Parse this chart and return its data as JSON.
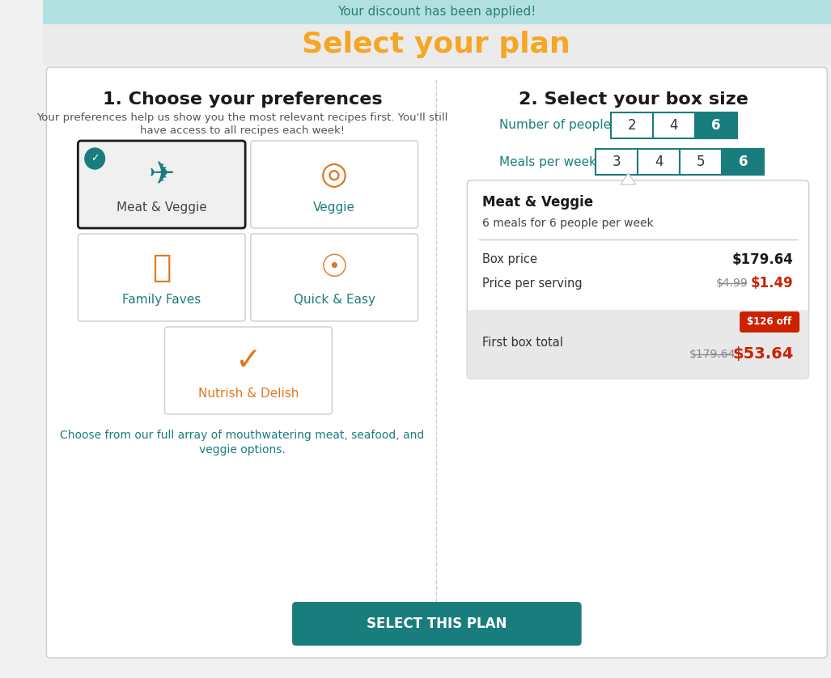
{
  "banner_bg": "#b2e0e0",
  "banner_text": "Your discount has been applied!",
  "banner_text_color": "#2d7d7d",
  "header_bg": "#ebebeb",
  "title": "Select your plan",
  "title_color": "#f5a623",
  "main_bg": "#f0f0f0",
  "card_bg": "#ffffff",
  "section1_title": "1. Choose your preferences",
  "section1_title_color": "#1a1a1a",
  "section1_subtitle_line1": "Your preferences help us show you the most relevant recipes first. You'll still",
  "section1_subtitle_line2": "have access to all recipes each week!",
  "section1_subtitle_color": "#555555",
  "preferences": [
    "Meat & Veggie",
    "Veggie",
    "Family Faves",
    "Quick & Easy",
    "Nutrish & Delish"
  ],
  "selected_preference": "Meat & Veggie",
  "teal_color": "#1a7d7d",
  "orange_color": "#e07820",
  "section2_title": "2. Select your box size",
  "people_label": "Number of people",
  "people_options": [
    "2",
    "4",
    "6"
  ],
  "meals_label": "Meals per week",
  "meals_options": [
    "3",
    "4",
    "5",
    "6"
  ],
  "selected_people": "6",
  "selected_meals": "6",
  "plan_name": "Meat & Veggie",
  "plan_desc": "6 meals for 6 people per week",
  "box_price_label": "Box price",
  "box_price": "$179.64",
  "per_serving_label": "Price per serving",
  "per_serving_original": "$4.99",
  "per_serving_discounted": "$1.49",
  "first_box_label": "First box total",
  "first_box_original": "$179.64",
  "first_box_discounted": "$53.64",
  "discount_badge": "$126 off",
  "button_text": "SELECT THIS PLAN",
  "button_color": "#1a7d7d",
  "button_text_color": "#ffffff",
  "divider_color": "#cccccc",
  "red_color": "#cc2200",
  "gray_badge_bg": "#e8e8e8",
  "strikethrough_color": "#888888",
  "label_teal": "#1a7d7d",
  "full_text_color": "#e07820",
  "bottom_text_part1": "Choose from our ",
  "bottom_text_full": "full",
  "bottom_text_part2": " array of mouthwatering meat, seafood, and",
  "bottom_text_line2": "veggie options."
}
